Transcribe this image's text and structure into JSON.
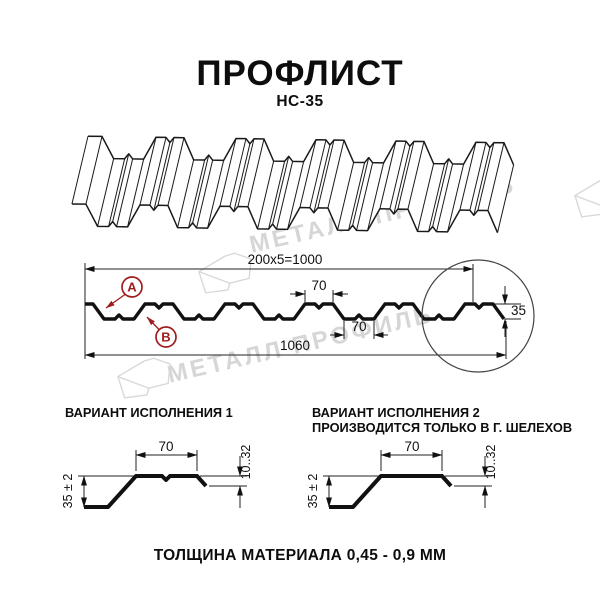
{
  "header": {
    "title": "ПРОФЛИСТ",
    "subtitle": "НС-35"
  },
  "watermark": {
    "text": "МЕТАЛЛ ПРОФИЛЬ"
  },
  "colors": {
    "line": "#1a1a1a",
    "accent_red": "#a01d1d",
    "watermark_gray": "#d6d6d6"
  },
  "cross_section": {
    "dim_working_width": "200x5=1000",
    "dim_crest_width": "70",
    "dim_valley_width": "70",
    "dim_full_width": "1060",
    "dim_height": "35",
    "label_a": "A",
    "label_b": "B"
  },
  "variant1": {
    "heading": "ВАРИАНТ ИСПОЛНЕНИЯ 1",
    "dim_top_width": "70",
    "dim_height": "35 ± 2",
    "dim_edge": "10..32"
  },
  "variant2": {
    "heading": "ВАРИАНТ ИСПОЛНЕНИЯ 2",
    "subheading": "ПРОИЗВОДИТСЯ ТОЛЬКО В Г. ШЕЛЕХОВ",
    "dim_top_width": "70",
    "dim_height": "35 ± 2",
    "dim_edge": "10..32"
  },
  "footer": {
    "note": "ТОЛЩИНА МАТЕРИАЛА 0,45 - 0,9 ММ"
  }
}
